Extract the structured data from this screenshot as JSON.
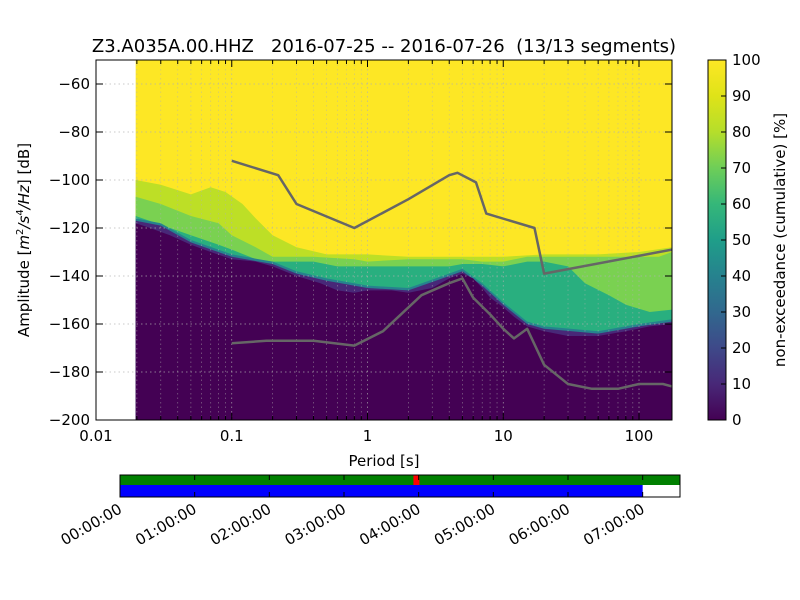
{
  "chart_data": [
    {
      "type": "heatmap",
      "title": "Z3.A035A.00.HHZ   2016-07-25 -- 2016-07-26  (13/13 segments)",
      "xlabel": "Period [s]",
      "ylabel_parts": [
        "Amplitude [",
        "m",
        "2",
        "/",
        "s",
        "4",
        "/",
        "Hz",
        "] [dB]"
      ],
      "xscale": "log",
      "xlim": [
        0.01,
        175
      ],
      "ylim": [
        -200,
        -50
      ],
      "grid": true,
      "x_tick_labels": [
        "0.01",
        "0.1",
        "1",
        "10",
        "100"
      ],
      "x_tick_values": [
        0.01,
        0.1,
        1,
        10,
        100
      ],
      "y_tick_labels": [
        "−60",
        "−80",
        "−100",
        "−120",
        "−140",
        "−160",
        "−180",
        "−200"
      ],
      "y_tick_values": [
        -60,
        -80,
        -100,
        -120,
        -140,
        -160,
        -180,
        -200
      ],
      "data_xmin": 0.0196,
      "colorbar": {
        "label": "non-exceedance (cumulative) [%]",
        "range": [
          0,
          100
        ],
        "tick_labels": [
          "0",
          "10",
          "20",
          "30",
          "40",
          "50",
          "60",
          "70",
          "80",
          "90",
          "100"
        ],
        "tick_values": [
          0,
          10,
          20,
          30,
          40,
          50,
          60,
          70,
          80,
          90,
          100
        ]
      },
      "percentile_bands": [
        {
          "name": "0-10",
          "color": "#440154",
          "upper": [
            [
              0.0196,
              -118
            ],
            [
              0.025,
              -120
            ],
            [
              0.035,
              -123
            ],
            [
              0.05,
              -127
            ],
            [
              0.07,
              -130
            ],
            [
              0.1,
              -133
            ],
            [
              0.15,
              -134
            ],
            [
              0.2,
              -136
            ],
            [
              0.3,
              -140
            ],
            [
              0.45,
              -143
            ],
            [
              0.6,
              -146
            ],
            [
              0.8,
              -147
            ],
            [
              1.0,
              -146
            ],
            [
              1.5,
              -146
            ],
            [
              2.0,
              -147
            ],
            [
              3.0,
              -145
            ],
            [
              4.0,
              -141
            ],
            [
              5.0,
              -139
            ],
            [
              6.0,
              -141
            ],
            [
              7.0,
              -145
            ],
            [
              8.0,
              -149
            ],
            [
              10.0,
              -153
            ],
            [
              12.0,
              -157
            ],
            [
              15.0,
              -161
            ],
            [
              20.0,
              -163
            ],
            [
              30.0,
              -165
            ],
            [
              50.0,
              -165
            ],
            [
              80.0,
              -163
            ],
            [
              120.0,
              -161
            ],
            [
              175.0,
              -160
            ]
          ]
        },
        {
          "name": "10-20",
          "color": "#482878",
          "upper": [
            [
              0.0196,
              -117
            ],
            [
              0.03,
              -119
            ],
            [
              0.05,
              -126
            ],
            [
              0.1,
              -132
            ],
            [
              0.2,
              -135
            ],
            [
              0.3,
              -139
            ],
            [
              0.5,
              -142
            ],
            [
              1.0,
              -145
            ],
            [
              2.0,
              -146
            ],
            [
              4.0,
              -140
            ],
            [
              5.0,
              -138
            ],
            [
              7.0,
              -144
            ],
            [
              10.0,
              -152
            ],
            [
              15.0,
              -160
            ],
            [
              20.0,
              -162
            ],
            [
              50.0,
              -164
            ],
            [
              100.0,
              -161
            ],
            [
              175.0,
              -159
            ]
          ]
        },
        {
          "name": "20-60",
          "color": "#26828e",
          "upper": [
            [
              0.0196,
              -116
            ],
            [
              0.03,
              -118
            ],
            [
              0.05,
              -125
            ],
            [
              0.1,
              -131
            ],
            [
              0.2,
              -134
            ],
            [
              0.3,
              -138
            ],
            [
              0.5,
              -141
            ],
            [
              1.0,
              -144
            ],
            [
              2.0,
              -145
            ],
            [
              4.0,
              -139
            ],
            [
              5.0,
              -137
            ],
            [
              7.0,
              -143
            ],
            [
              10.0,
              -151
            ],
            [
              15.0,
              -159
            ],
            [
              20.0,
              -161
            ],
            [
              50.0,
              -163
            ],
            [
              100.0,
              -160
            ],
            [
              175.0,
              -158
            ]
          ]
        },
        {
          "name": "60-70",
          "color": "#29af7f",
          "upper": [
            [
              0.0196,
              -115
            ],
            [
              0.05,
              -123
            ],
            [
              0.08,
              -127
            ],
            [
              0.1,
              -129
            ],
            [
              0.15,
              -133
            ],
            [
              0.2,
              -134
            ],
            [
              0.4,
              -134
            ],
            [
              0.6,
              -136
            ],
            [
              1.0,
              -136
            ],
            [
              2.0,
              -136
            ],
            [
              3.0,
              -136
            ],
            [
              4.0,
              -136
            ],
            [
              5.0,
              -135
            ],
            [
              7.0,
              -135
            ],
            [
              10.0,
              -136
            ],
            [
              15.0,
              -134
            ],
            [
              20.0,
              -134
            ],
            [
              30.0,
              -136
            ],
            [
              40.0,
              -143
            ],
            [
              60.0,
              -148
            ],
            [
              80.0,
              -152
            ],
            [
              120.0,
              -155
            ],
            [
              175.0,
              -154
            ]
          ]
        },
        {
          "name": "70-80",
          "color": "#7ad151",
          "upper": [
            [
              0.0196,
              -107
            ],
            [
              0.03,
              -110
            ],
            [
              0.05,
              -115
            ],
            [
              0.08,
              -118
            ],
            [
              0.1,
              -123
            ],
            [
              0.15,
              -128
            ],
            [
              0.2,
              -132
            ],
            [
              0.4,
              -132
            ],
            [
              0.8,
              -133
            ],
            [
              1.0,
              -134
            ],
            [
              2.0,
              -133
            ],
            [
              4.0,
              -133
            ],
            [
              5.0,
              -133
            ],
            [
              7.0,
              -134
            ],
            [
              10.0,
              -134
            ],
            [
              15.0,
              -132
            ],
            [
              20.0,
              -132
            ],
            [
              30.0,
              -132
            ],
            [
              50.0,
              -132
            ],
            [
              100.0,
              -132
            ],
            [
              140.0,
              -132
            ],
            [
              175.0,
              -130
            ]
          ]
        },
        {
          "name": "80-90",
          "color": "#bddf26",
          "upper": [
            [
              0.0196,
              -100
            ],
            [
              0.03,
              -102
            ],
            [
              0.05,
              -106
            ],
            [
              0.07,
              -103
            ],
            [
              0.09,
              -105
            ],
            [
              0.12,
              -110
            ],
            [
              0.15,
              -116
            ],
            [
              0.2,
              -123
            ],
            [
              0.3,
              -128
            ],
            [
              0.5,
              -131
            ],
            [
              1.0,
              -131
            ],
            [
              2.0,
              -132
            ],
            [
              4.0,
              -132
            ],
            [
              10.0,
              -132
            ],
            [
              20.0,
              -131
            ],
            [
              50.0,
              -131
            ],
            [
              100.0,
              -130
            ],
            [
              175.0,
              -128
            ]
          ]
        },
        {
          "name": "90-100",
          "color": "#fde725",
          "upper": [
            [
              0.0196,
              -50
            ],
            [
              175.0,
              -50
            ]
          ]
        }
      ],
      "lines": [
        {
          "name": "",
          "color": "#666666",
          "points": [
            [
              0.1,
              -92
            ],
            [
              0.22,
              -98
            ],
            [
              0.3,
              -110
            ],
            [
              0.8,
              -120
            ],
            [
              2.0,
              -108
            ],
            [
              4.0,
              -98
            ],
            [
              4.6,
              -97
            ],
            [
              6.3,
              -101
            ],
            [
              7.5,
              -114
            ],
            [
              17.0,
              -120
            ],
            [
              20.0,
              -139
            ],
            [
              175.0,
              -129
            ]
          ]
        },
        {
          "name": "",
          "color": "#666666",
          "points": [
            [
              0.1,
              -168
            ],
            [
              0.18,
              -167
            ],
            [
              0.4,
              -167
            ],
            [
              0.8,
              -169
            ],
            [
              1.3,
              -163
            ],
            [
              2.5,
              -148
            ],
            [
              4.0,
              -143
            ],
            [
              5.0,
              -141
            ],
            [
              6.0,
              -149
            ],
            [
              8.0,
              -156
            ],
            [
              10.0,
              -162
            ],
            [
              12.0,
              -166
            ],
            [
              15.0,
              -162
            ],
            [
              20.0,
              -177
            ],
            [
              30.0,
              -185
            ],
            [
              45.0,
              -187
            ],
            [
              70.0,
              -187
            ],
            [
              100.0,
              -185
            ],
            [
              150.0,
              -185
            ],
            [
              175.0,
              -186
            ]
          ]
        }
      ]
    },
    {
      "type": "timeline",
      "tick_labels": [
        "00:00:00",
        "01:00:00",
        "02:00:00",
        "03:00:00",
        "04:00:00",
        "05:00:00",
        "06:00:00",
        "07:00:00"
      ],
      "tick_values_hours": [
        0,
        1,
        2,
        3,
        4,
        5,
        6,
        7
      ],
      "range_hours": [
        0,
        7.5
      ],
      "bars": [
        {
          "name": "coverage-top",
          "color": "#008000",
          "start_hours": 0,
          "end_hours": 7.5
        },
        {
          "name": "coverage-bottom",
          "color": "#0000ff",
          "start_hours": 0,
          "end_hours": 7.0
        }
      ],
      "markers": [
        {
          "name": "gap-marker",
          "color": "#ff0000",
          "at_hours": 3.97
        }
      ]
    }
  ]
}
